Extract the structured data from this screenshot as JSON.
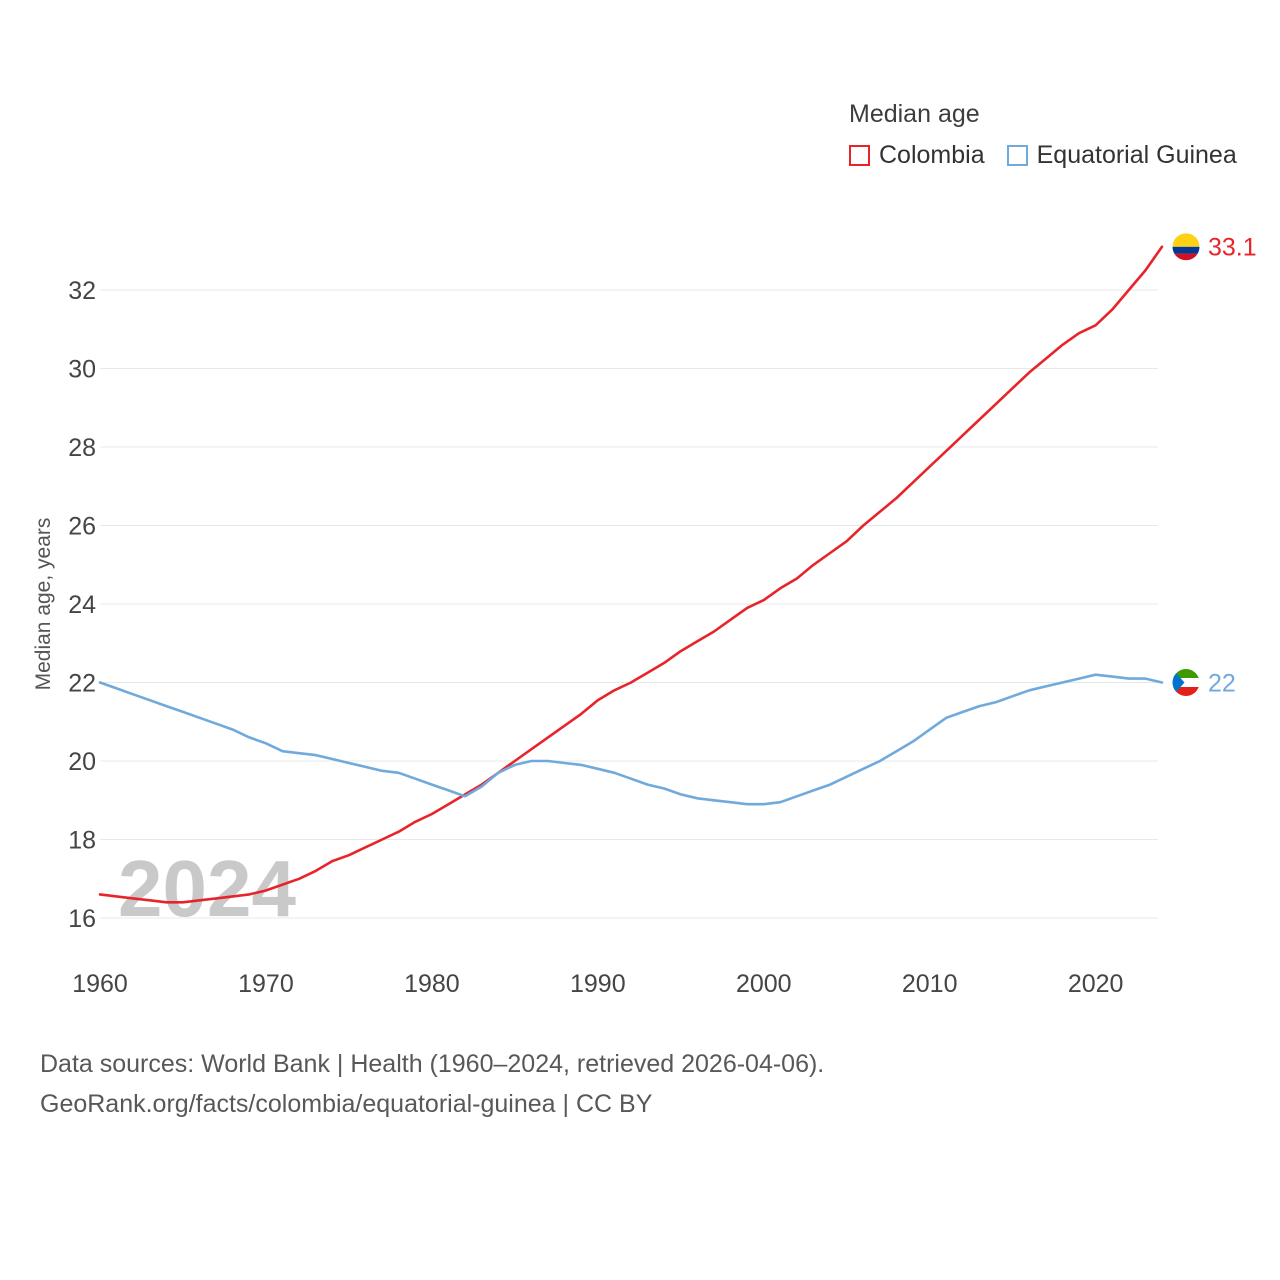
{
  "legend": {
    "title": "Median age",
    "items": [
      {
        "label": "Colombia",
        "color": "#e8242b"
      },
      {
        "label": "Equatorial Guinea",
        "color": "#70aadc"
      }
    ]
  },
  "watermark": "2024",
  "footer": {
    "line1": "Data sources: World Bank | Health (1960–2024, retrieved 2026-04-06).",
    "line2": "GeoRank.org/facts/colombia/equatorial-guinea | CC BY"
  },
  "chart_data": {
    "type": "line",
    "title": "Median age",
    "ylabel": "Median age, years",
    "xlabel": "",
    "xlim": [
      1960,
      2024
    ],
    "ylim": [
      15.5,
      33.5
    ],
    "x_ticks": [
      1960,
      1970,
      1980,
      1990,
      2000,
      2010,
      2020
    ],
    "y_ticks": [
      16,
      18,
      20,
      22,
      24,
      26,
      28,
      30,
      32
    ],
    "grid": "horizontal",
    "legend_position": "top-right",
    "x": [
      1960,
      1961,
      1962,
      1963,
      1964,
      1965,
      1966,
      1967,
      1968,
      1969,
      1970,
      1971,
      1972,
      1973,
      1974,
      1975,
      1976,
      1977,
      1978,
      1979,
      1980,
      1981,
      1982,
      1983,
      1984,
      1985,
      1986,
      1987,
      1988,
      1989,
      1990,
      1991,
      1992,
      1993,
      1994,
      1995,
      1996,
      1997,
      1998,
      1999,
      2000,
      2001,
      2002,
      2003,
      2004,
      2005,
      2006,
      2007,
      2008,
      2009,
      2010,
      2011,
      2012,
      2013,
      2014,
      2015,
      2016,
      2017,
      2018,
      2019,
      2020,
      2021,
      2022,
      2023,
      2024
    ],
    "series": [
      {
        "name": "Colombia",
        "color": "#e8242b",
        "end_label": "33.1",
        "flag": "colombia",
        "flag_colors": [
          "#FCD116",
          "#003893",
          "#CE1126"
        ],
        "values": [
          16.6,
          16.55,
          16.5,
          16.45,
          16.4,
          16.4,
          16.45,
          16.5,
          16.55,
          16.6,
          16.7,
          16.85,
          17.0,
          17.2,
          17.45,
          17.6,
          17.8,
          18.0,
          18.2,
          18.45,
          18.65,
          18.9,
          19.15,
          19.4,
          19.7,
          20.0,
          20.3,
          20.6,
          20.9,
          21.2,
          21.55,
          21.8,
          22.0,
          22.25,
          22.5,
          22.8,
          23.05,
          23.3,
          23.6,
          23.9,
          24.1,
          24.4,
          24.65,
          25.0,
          25.3,
          25.6,
          26.0,
          26.35,
          26.7,
          27.1,
          27.5,
          27.9,
          28.3,
          28.7,
          29.1,
          29.5,
          29.9,
          30.25,
          30.6,
          30.9,
          31.1,
          31.5,
          32.0,
          32.5,
          33.1
        ]
      },
      {
        "name": "Equatorial Guinea",
        "color": "#70aadc",
        "end_label": "22",
        "flag": "equatorial-guinea",
        "flag_colors": [
          "#3E9A00",
          "#FFFFFF",
          "#E32118",
          "#0073CE"
        ],
        "values": [
          22.0,
          21.85,
          21.7,
          21.55,
          21.4,
          21.25,
          21.1,
          20.95,
          20.8,
          20.6,
          20.45,
          20.25,
          20.2,
          20.15,
          20.05,
          19.95,
          19.85,
          19.75,
          19.7,
          19.55,
          19.4,
          19.25,
          19.1,
          19.35,
          19.7,
          19.9,
          20.0,
          20.0,
          19.95,
          19.9,
          19.8,
          19.7,
          19.55,
          19.4,
          19.3,
          19.15,
          19.05,
          19.0,
          18.95,
          18.9,
          18.9,
          18.95,
          19.1,
          19.25,
          19.4,
          19.6,
          19.8,
          20.0,
          20.25,
          20.5,
          20.8,
          21.1,
          21.25,
          21.4,
          21.5,
          21.65,
          21.8,
          21.9,
          22.0,
          22.1,
          22.2,
          22.15,
          22.1,
          22.1,
          22.0
        ]
      }
    ],
    "text_color": "#454545",
    "grid_color": "#e8e8e8",
    "watermark_color": "#c9c9c9"
  }
}
